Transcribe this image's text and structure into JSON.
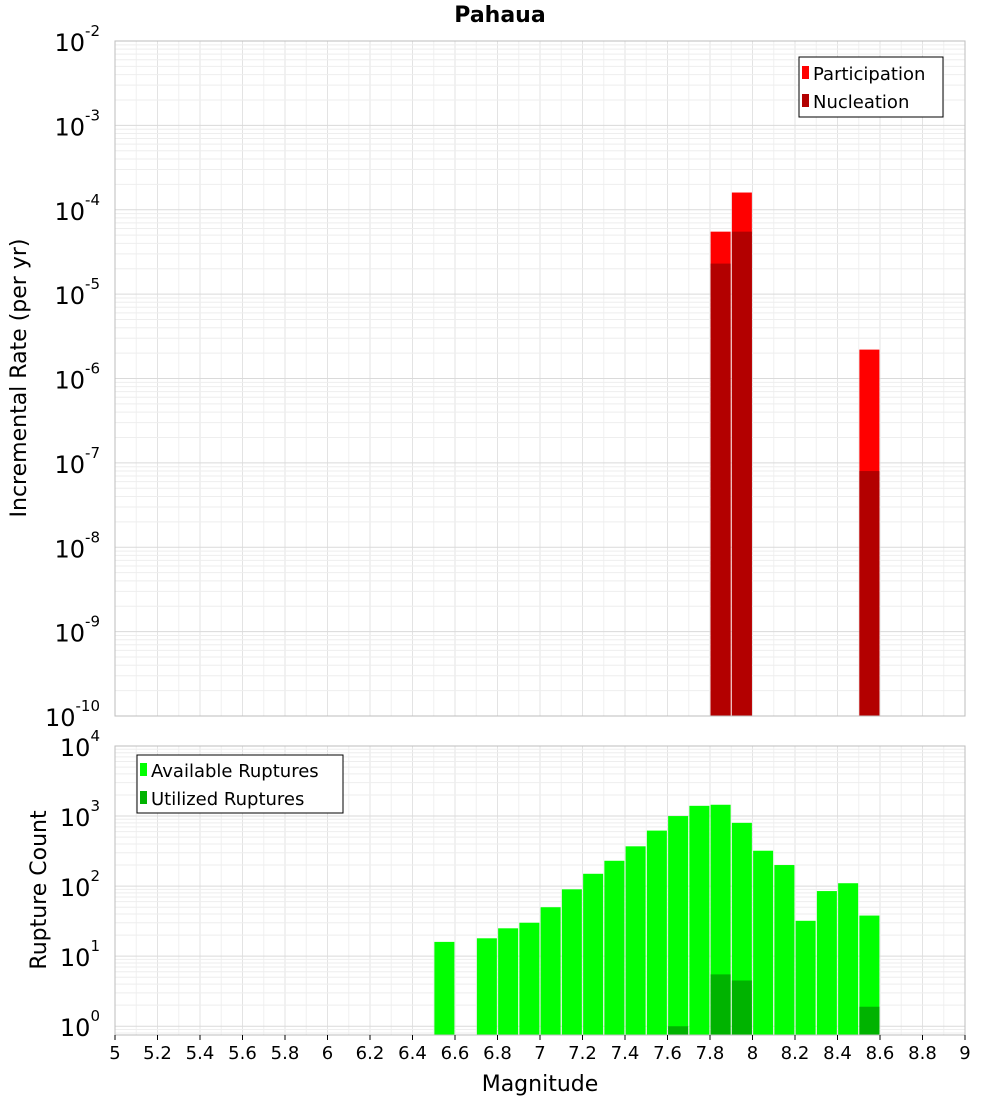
{
  "chart_data": [
    {
      "type": "bar",
      "title": "Pahaua",
      "xlabel": "",
      "ylabel": "Incremental Rate (per yr)",
      "yscale": "log",
      "xlim": [
        5,
        9
      ],
      "ylim": [
        1e-10,
        0.01
      ],
      "grid": true,
      "legend_position": "top-right",
      "y_ticks": [
        {
          "base": "10",
          "exp": "-2",
          "value": 0.01
        },
        {
          "base": "10",
          "exp": "-3",
          "value": 0.001
        },
        {
          "base": "10",
          "exp": "-4",
          "value": 0.0001
        },
        {
          "base": "10",
          "exp": "-5",
          "value": 1e-05
        },
        {
          "base": "10",
          "exp": "-6",
          "value": 1e-06
        },
        {
          "base": "10",
          "exp": "-7",
          "value": 1e-07
        },
        {
          "base": "10",
          "exp": "-8",
          "value": 1e-08
        },
        {
          "base": "10",
          "exp": "-9",
          "value": 1e-09
        },
        {
          "base": "10",
          "exp": "-10",
          "value": 1e-10
        }
      ],
      "series": [
        {
          "name": "Participation",
          "color": "#ff0000",
          "points": [
            {
              "x": 7.85,
              "y": 5.5e-05
            },
            {
              "x": 7.95,
              "y": 0.00016
            },
            {
              "x": 8.55,
              "y": 2.2e-06
            }
          ]
        },
        {
          "name": "Nucleation",
          "color": "#b30000",
          "points": [
            {
              "x": 7.85,
              "y": 2.3e-05
            },
            {
              "x": 7.95,
              "y": 5.5e-05
            },
            {
              "x": 8.55,
              "y": 8e-08
            }
          ]
        }
      ]
    },
    {
      "type": "bar",
      "title": "",
      "xlabel": "Magnitude",
      "ylabel": "Rupture Count",
      "yscale": "log",
      "xlim": [
        5,
        9
      ],
      "ylim": [
        0.75,
        10000
      ],
      "grid": true,
      "legend_position": "top-left",
      "x_ticks": [
        "5",
        "5.2",
        "5.4",
        "5.6",
        "5.8",
        "6",
        "6.2",
        "6.4",
        "6.6",
        "6.8",
        "7",
        "7.2",
        "7.4",
        "7.6",
        "7.8",
        "8",
        "8.2",
        "8.4",
        "8.6",
        "8.8",
        "9"
      ],
      "y_ticks": [
        {
          "base": "10",
          "exp": "4",
          "value": 10000
        },
        {
          "base": "10",
          "exp": "3",
          "value": 1000
        },
        {
          "base": "10",
          "exp": "2",
          "value": 100
        },
        {
          "base": "10",
          "exp": "1",
          "value": 10
        },
        {
          "base": "10",
          "exp": "0",
          "value": 1
        }
      ],
      "series": [
        {
          "name": "Available Ruptures",
          "color": "#00ff00",
          "points": [
            {
              "x": 6.55,
              "y": 16
            },
            {
              "x": 6.75,
              "y": 18
            },
            {
              "x": 6.85,
              "y": 25
            },
            {
              "x": 6.95,
              "y": 30
            },
            {
              "x": 7.05,
              "y": 50
            },
            {
              "x": 7.15,
              "y": 90
            },
            {
              "x": 7.25,
              "y": 150
            },
            {
              "x": 7.35,
              "y": 230
            },
            {
              "x": 7.45,
              "y": 370
            },
            {
              "x": 7.55,
              "y": 620
            },
            {
              "x": 7.65,
              "y": 1000
            },
            {
              "x": 7.75,
              "y": 1400
            },
            {
              "x": 7.85,
              "y": 1450
            },
            {
              "x": 7.95,
              "y": 800
            },
            {
              "x": 8.05,
              "y": 320
            },
            {
              "x": 8.15,
              "y": 200
            },
            {
              "x": 8.25,
              "y": 32
            },
            {
              "x": 8.35,
              "y": 85
            },
            {
              "x": 8.45,
              "y": 110
            },
            {
              "x": 8.55,
              "y": 38
            }
          ]
        },
        {
          "name": "Utilized Ruptures",
          "color": "#00b300",
          "points": [
            {
              "x": 7.65,
              "y": 1
            },
            {
              "x": 7.85,
              "y": 5.5
            },
            {
              "x": 7.95,
              "y": 4.5
            },
            {
              "x": 8.55,
              "y": 1.9
            }
          ]
        }
      ]
    }
  ]
}
